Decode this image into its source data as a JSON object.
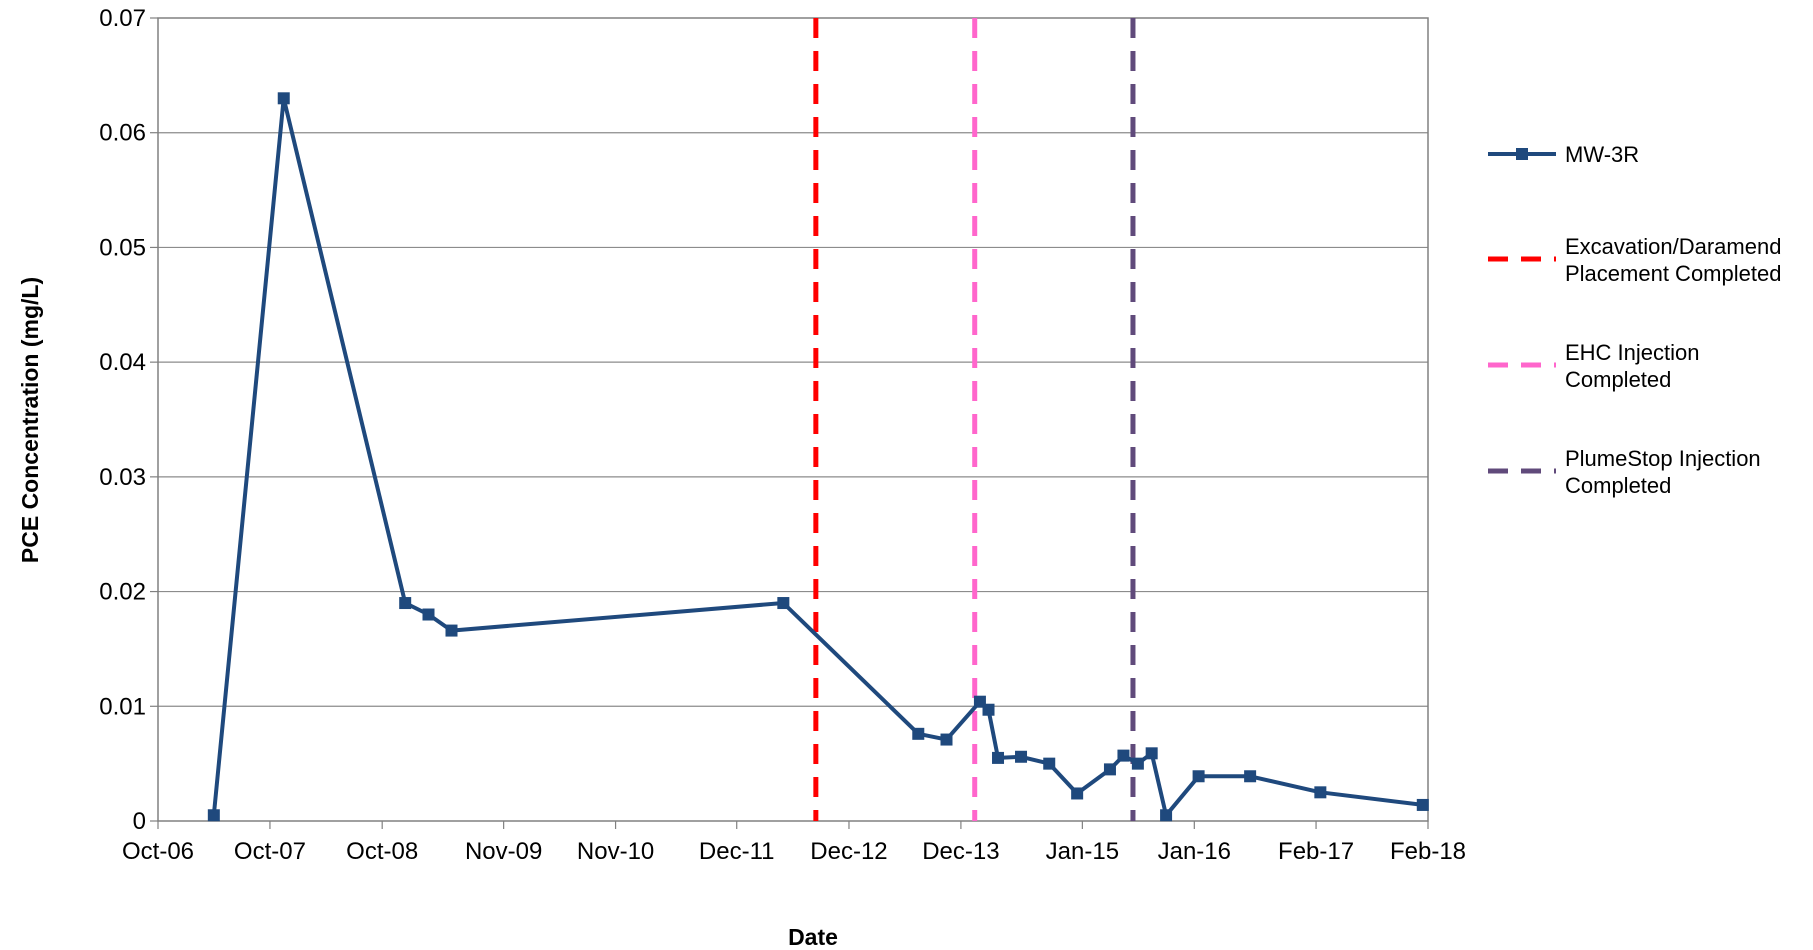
{
  "chart_data": {
    "type": "line",
    "xlabel": "Date",
    "ylabel": "PCE Concentration (mg/L)",
    "ylim": [
      0,
      0.07
    ],
    "yticks": [
      0,
      0.01,
      0.02,
      0.03,
      0.04,
      0.05,
      0.06,
      0.07
    ],
    "ytick_labels": [
      "0",
      "0.01",
      "0.02",
      "0.03",
      "0.04",
      "0.05",
      "0.06",
      "0.07"
    ],
    "xlim": [
      "2006-10-01",
      "2018-02-01"
    ],
    "xticks": [
      "2006-10-01",
      "2007-10-01",
      "2008-10-01",
      "2009-11-01",
      "2010-11-01",
      "2011-12-01",
      "2012-12-01",
      "2013-12-01",
      "2015-01-01",
      "2016-01-01",
      "2017-02-01",
      "2018-02-01"
    ],
    "xtick_labels": [
      "Oct-06",
      "Oct-07",
      "Oct-08",
      "Nov-09",
      "Nov-10",
      "Dec-11",
      "Dec-12",
      "Dec-13",
      "Jan-15",
      "Jan-16",
      "Feb-17",
      "Feb-18"
    ],
    "grid": "horizontal",
    "legend_position": "right",
    "series": [
      {
        "name": "MW-3R",
        "color": "#1F497D",
        "marker": "square",
        "points": [
          {
            "x": "2007-04-01",
            "y": 0.0005
          },
          {
            "x": "2007-11-15",
            "y": 0.063
          },
          {
            "x": "2008-12-15",
            "y": 0.019
          },
          {
            "x": "2009-03-01",
            "y": 0.018
          },
          {
            "x": "2009-05-15",
            "y": 0.0166
          },
          {
            "x": "2012-05-01",
            "y": 0.019
          },
          {
            "x": "2013-07-15",
            "y": 0.0076
          },
          {
            "x": "2013-10-15",
            "y": 0.0071
          },
          {
            "x": "2014-02-01",
            "y": 0.0104
          },
          {
            "x": "2014-03-01",
            "y": 0.0097
          },
          {
            "x": "2014-04-01",
            "y": 0.0055
          },
          {
            "x": "2014-06-15",
            "y": 0.0056
          },
          {
            "x": "2014-09-15",
            "y": 0.005
          },
          {
            "x": "2014-12-15",
            "y": 0.0024
          },
          {
            "x": "2015-04-01",
            "y": 0.0045
          },
          {
            "x": "2015-05-15",
            "y": 0.0057
          },
          {
            "x": "2015-07-01",
            "y": 0.005
          },
          {
            "x": "2015-08-15",
            "y": 0.0059
          },
          {
            "x": "2015-10-01",
            "y": 0.0005
          },
          {
            "x": "2016-01-15",
            "y": 0.0039
          },
          {
            "x": "2016-07-01",
            "y": 0.0039
          },
          {
            "x": "2017-02-15",
            "y": 0.0025
          },
          {
            "x": "2018-01-15",
            "y": 0.0014
          }
        ]
      }
    ],
    "reference_lines": [
      {
        "name": "Excavation/Daramend Placement Completed",
        "x": "2012-08-15",
        "color": "#FF0000"
      },
      {
        "name": "EHC Injection Completed",
        "x": "2014-01-15",
        "color": "#FF66CC"
      },
      {
        "name": "PlumeStop Injection Completed",
        "x": "2015-06-15",
        "color": "#604A7B"
      }
    ],
    "legend": [
      {
        "label_lines": [
          "MW-3R"
        ],
        "style": "solid-marker",
        "color": "#1F497D"
      },
      {
        "label_lines": [
          "Excavation/Daramend",
          "Placement Completed"
        ],
        "style": "dashed",
        "color": "#FF0000"
      },
      {
        "label_lines": [
          "EHC Injection",
          "Completed"
        ],
        "style": "dashed",
        "color": "#FF66CC"
      },
      {
        "label_lines": [
          "PlumeStop Injection",
          "Completed"
        ],
        "style": "dashed",
        "color": "#604A7B"
      }
    ]
  }
}
